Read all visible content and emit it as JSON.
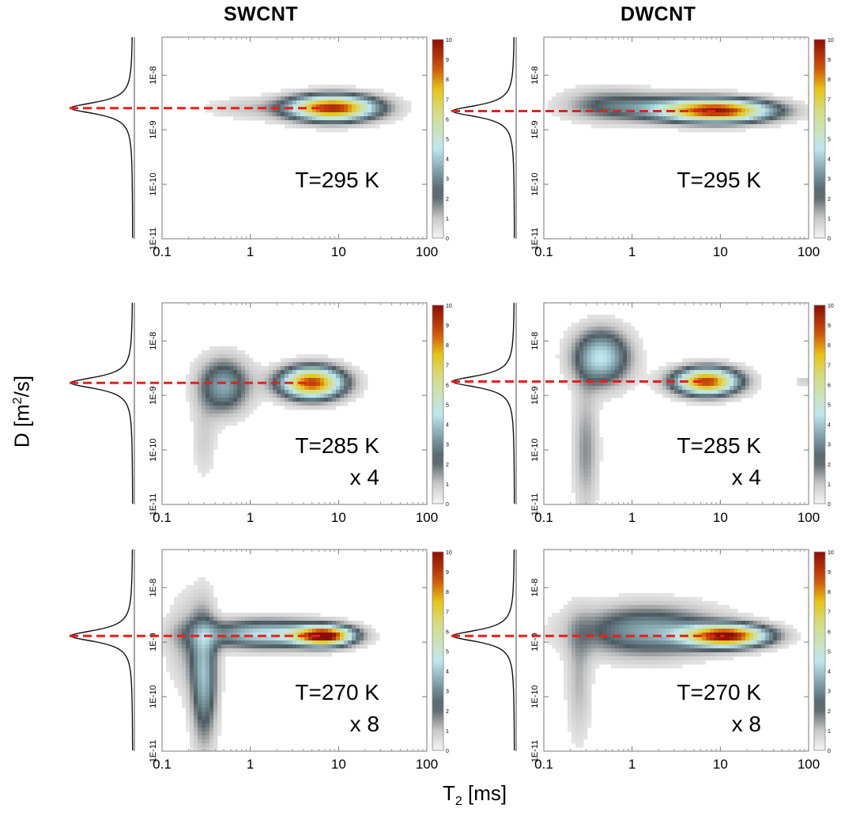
{
  "titles": {
    "left": "SWCNT",
    "right": "DWCNT"
  },
  "axes": {
    "ylabel_main": "D [m",
    "ylabel_sup": "2",
    "ylabel_tail": "/s]",
    "xlabel_main": "T",
    "xlabel_sub": "2",
    "xlabel_tail": " [ms]"
  },
  "colors": {
    "guide": "#e8201c",
    "low": "#d8d8d8",
    "mid_gray": "#4d5a60",
    "cyan": "#bfe6ee",
    "yellow": "#e6c417",
    "dark_red": "#8b0d06"
  },
  "chart_data": [
    {
      "type": "heatmap",
      "panel": "SWCNT 295 K",
      "title": "SWCNT",
      "annotation": [
        "T=295 K"
      ],
      "xscale": "log",
      "yscale": "log",
      "xlim": [
        0.1,
        100
      ],
      "ylim": [
        1e-11,
        5e-08
      ],
      "xticks": [
        "0.1",
        "1",
        "10",
        "100"
      ],
      "yticks": [
        "1E-11",
        "1E-10",
        "1E-9",
        "1E-8"
      ],
      "xlabel": "T2 [ms]",
      "ylabel": "D [m2/s]",
      "peak_D": 2.5e-09,
      "colorbar": {
        "min": 0,
        "max": 10,
        "ticks": [
          "0",
          "1",
          "2",
          "3",
          "4",
          "5",
          "6",
          "7",
          "8",
          "9",
          "10"
        ]
      },
      "lobes": [
        {
          "T2": 8.5,
          "D": 2.5e-09,
          "wx": 0.35,
          "wy": 0.16,
          "amp": 9.5
        },
        {
          "T2": 0.8,
          "D": 2.5e-09,
          "wx": 0.33,
          "wy": 0.14,
          "amp": 0.8
        }
      ]
    },
    {
      "type": "heatmap",
      "panel": "DWCNT 295 K",
      "title": "DWCNT",
      "annotation": [
        "T=295 K"
      ],
      "xscale": "log",
      "yscale": "log",
      "xlim": [
        0.1,
        100
      ],
      "ylim": [
        1e-11,
        5e-08
      ],
      "xticks": [
        "0.1",
        "1",
        "10",
        "100"
      ],
      "yticks": [
        "1E-11",
        "1E-10",
        "1E-9",
        "1E-8"
      ],
      "xlabel": "T2 [ms]",
      "ylabel": "D [m2/s]",
      "peak_D": 2.2e-09,
      "colorbar": {
        "min": 0,
        "max": 10,
        "ticks": [
          "0",
          "1",
          "2",
          "3",
          "4",
          "5",
          "6",
          "7",
          "8",
          "9",
          "10"
        ]
      },
      "lobes": [
        {
          "T2": 10,
          "D": 2.2e-09,
          "wx": 0.42,
          "wy": 0.14,
          "amp": 8.5
        },
        {
          "T2": 2.5,
          "D": 2.5e-09,
          "wx": 0.55,
          "wy": 0.17,
          "amp": 2.5
        },
        {
          "T2": 0.5,
          "D": 3e-09,
          "wx": 0.35,
          "wy": 0.22,
          "amp": 1.5
        }
      ]
    },
    {
      "type": "heatmap",
      "panel": "SWCNT 285 K",
      "title": "SWCNT",
      "annotation": [
        "T=285 K",
        "x 4"
      ],
      "xscale": "log",
      "yscale": "log",
      "xlim": [
        0.1,
        100
      ],
      "ylim": [
        1e-11,
        5e-08
      ],
      "xticks": [
        "0.1",
        "1",
        "10",
        "100"
      ],
      "yticks": [
        "1E-11",
        "1E-10",
        "1E-9",
        "1E-8"
      ],
      "xlabel": "T2 [ms]",
      "ylabel": "D [m2/s]",
      "peak_D": 1.7e-09,
      "colorbar": {
        "min": 0,
        "max": 10,
        "ticks": [
          "0",
          "1",
          "2",
          "3",
          "4",
          "5",
          "6",
          "7",
          "8",
          "9",
          "10"
        ]
      },
      "lobes": [
        {
          "T2": 5,
          "D": 1.7e-09,
          "wx": 0.25,
          "wy": 0.2,
          "amp": 9
        },
        {
          "T2": 0.5,
          "D": 1.5e-09,
          "wx": 0.2,
          "wy": 0.35,
          "amp": 3.5
        },
        {
          "T2": 0.3,
          "D": 1.5e-10,
          "wx": 0.1,
          "wy": 0.5,
          "amp": 0.8
        }
      ]
    },
    {
      "type": "heatmap",
      "panel": "DWCNT 285 K",
      "title": "DWCNT",
      "annotation": [
        "T=285 K",
        "x 4"
      ],
      "xscale": "log",
      "yscale": "log",
      "xlim": [
        0.1,
        100
      ],
      "ylim": [
        1e-11,
        5e-08
      ],
      "xticks": [
        "0.1",
        "1",
        "10",
        "100"
      ],
      "yticks": [
        "1E-11",
        "1E-10",
        "1E-9",
        "1E-8"
      ],
      "xlabel": "T2 [ms]",
      "ylabel": "D [m2/s]",
      "peak_D": 1.8e-09,
      "colorbar": {
        "min": 0,
        "max": 10,
        "ticks": [
          "0",
          "1",
          "2",
          "3",
          "4",
          "5",
          "6",
          "7",
          "8",
          "9",
          "10"
        ]
      },
      "lobes": [
        {
          "T2": 7,
          "D": 1.8e-09,
          "wx": 0.25,
          "wy": 0.17,
          "amp": 9
        },
        {
          "T2": 0.45,
          "D": 5e-09,
          "wx": 0.22,
          "wy": 0.35,
          "amp": 4.5
        },
        {
          "T2": 0.3,
          "D": 1e-10,
          "wx": 0.1,
          "wy": 0.8,
          "amp": 1.6
        },
        {
          "T2": 90,
          "D": 1.8e-09,
          "wx": 0.08,
          "wy": 0.05,
          "amp": 1.0
        }
      ]
    },
    {
      "type": "heatmap",
      "panel": "SWCNT 270 K",
      "title": "SWCNT",
      "annotation": [
        "T=270 K",
        "x 8"
      ],
      "xscale": "log",
      "yscale": "log",
      "xlim": [
        0.1,
        100
      ],
      "ylim": [
        1e-11,
        5e-08
      ],
      "xticks": [
        "0.1",
        "1",
        "10",
        "100"
      ],
      "yticks": [
        "1E-11",
        "1E-10",
        "1E-9",
        "1E-8"
      ],
      "xlabel": "T2 [ms]",
      "ylabel": "D [m2/s]",
      "peak_D": 1.3e-09,
      "colorbar": {
        "min": 0,
        "max": 10,
        "ticks": [
          "0",
          "1",
          "2",
          "3",
          "4",
          "5",
          "6",
          "7",
          "8",
          "9",
          "10"
        ]
      },
      "lobes": [
        {
          "T2": 7,
          "D": 1.3e-09,
          "wx": 0.22,
          "wy": 0.12,
          "amp": 9.5
        },
        {
          "T2": 1.5,
          "D": 1.4e-09,
          "wx": 0.5,
          "wy": 0.18,
          "amp": 4.5
        },
        {
          "T2": 0.3,
          "D": 2e-10,
          "wx": 0.1,
          "wy": 0.8,
          "amp": 3.5
        },
        {
          "T2": 0.2,
          "D": 1e-09,
          "wx": 0.18,
          "wy": 0.6,
          "amp": 1.2
        }
      ]
    },
    {
      "type": "heatmap",
      "panel": "DWCNT 270 K",
      "title": "DWCNT",
      "annotation": [
        "T=270 K",
        "x 8"
      ],
      "xscale": "log",
      "yscale": "log",
      "xlim": [
        0.1,
        100
      ],
      "ylim": [
        1e-11,
        5e-08
      ],
      "xticks": [
        "0.1",
        "1",
        "10",
        "100"
      ],
      "yticks": [
        "1E-11",
        "1E-10",
        "1E-9",
        "1E-8"
      ],
      "xlabel": "T2 [ms]",
      "ylabel": "D [m2/s]",
      "peak_D": 1.3e-09,
      "colorbar": {
        "min": 0,
        "max": 10,
        "ticks": [
          "0",
          "1",
          "2",
          "3",
          "4",
          "5",
          "6",
          "7",
          "8",
          "9",
          "10"
        ]
      },
      "lobes": [
        {
          "T2": 12,
          "D": 1.3e-09,
          "wx": 0.32,
          "wy": 0.14,
          "amp": 9.5
        },
        {
          "T2": 1.5,
          "D": 1.6e-09,
          "wx": 0.55,
          "wy": 0.32,
          "amp": 3.5
        },
        {
          "T2": 0.25,
          "D": 2e-10,
          "wx": 0.1,
          "wy": 0.8,
          "amp": 1.2
        }
      ]
    }
  ]
}
